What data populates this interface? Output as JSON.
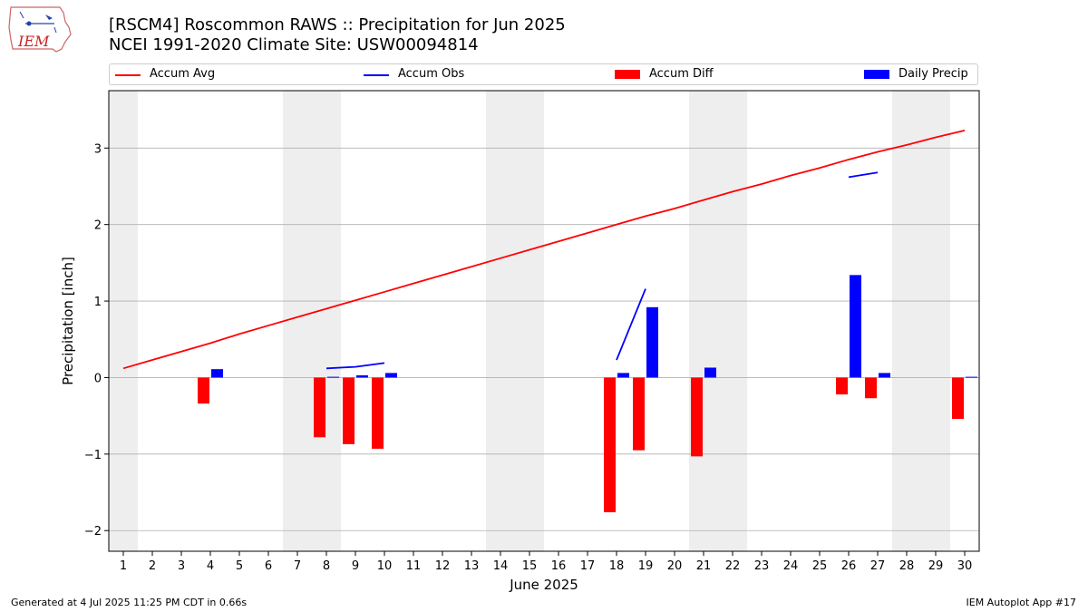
{
  "header": {
    "title_line1": "[RSCM4] Roscommon RAWS :: Precipitation for Jun 2025",
    "title_line2": "NCEI 1991-2020 Climate Site: USW00094814",
    "logo_text": "IEM"
  },
  "footer": {
    "left": "Generated at 4 Jul 2025 11:25 PM CDT in 0.66s",
    "right": "IEM Autoplot App #17"
  },
  "colors": {
    "avg": "#ff0000",
    "obs": "#0000ff",
    "diff": "#ff0000",
    "daily": "#0000ff",
    "weekend_band": "#eeeeee",
    "grid": "#b0b0b0"
  },
  "chart_data": {
    "type": "bar",
    "xlabel": "June 2025",
    "ylabel": "Precipitation [inch]",
    "ylim": [
      -2.27,
      3.75
    ],
    "yticks": [
      -2,
      -1,
      0,
      1,
      2,
      3
    ],
    "x": [
      1,
      2,
      3,
      4,
      5,
      6,
      7,
      8,
      9,
      10,
      11,
      12,
      13,
      14,
      15,
      16,
      17,
      18,
      19,
      20,
      21,
      22,
      23,
      24,
      25,
      26,
      27,
      28,
      29,
      30
    ],
    "weekend_days": [
      1,
      7,
      8,
      14,
      15,
      21,
      22,
      28,
      29
    ],
    "grid": "horizontal",
    "legend": "top",
    "series": [
      {
        "name": "Accum Avg",
        "kind": "line",
        "values": [
          0.12,
          0.23,
          0.34,
          0.45,
          0.57,
          0.68,
          0.79,
          0.9,
          1.01,
          1.12,
          1.23,
          1.34,
          1.45,
          1.56,
          1.67,
          1.78,
          1.89,
          2.0,
          2.11,
          2.21,
          2.32,
          2.43,
          2.53,
          2.64,
          2.74,
          2.85,
          2.95,
          3.04,
          3.14,
          3.23
        ]
      },
      {
        "name": "Accum Obs",
        "kind": "line",
        "values": [
          null,
          null,
          null,
          null,
          null,
          null,
          null,
          0.12,
          0.14,
          0.19,
          null,
          null,
          null,
          null,
          null,
          null,
          null,
          0.23,
          1.16,
          null,
          null,
          null,
          null,
          null,
          null,
          2.62,
          2.68,
          null,
          null,
          null
        ]
      },
      {
        "name": "Accum Diff",
        "kind": "bar",
        "values": [
          0,
          0,
          0,
          -0.34,
          0,
          0,
          0,
          -0.78,
          -0.87,
          -0.93,
          0,
          0,
          0,
          0,
          0,
          0,
          0,
          -1.76,
          -0.95,
          0,
          -1.03,
          0,
          0,
          0,
          0,
          -0.22,
          -0.27,
          0,
          0,
          -0.54
        ]
      },
      {
        "name": "Daily Precip",
        "kind": "bar",
        "values": [
          0,
          0,
          0,
          0.11,
          0,
          0,
          0,
          0.01,
          0.03,
          0.06,
          0,
          0,
          0,
          0,
          0,
          0,
          0,
          0.06,
          0.92,
          0,
          0.13,
          0,
          0,
          0,
          0,
          1.34,
          0.06,
          0,
          0,
          0.01
        ]
      }
    ]
  }
}
